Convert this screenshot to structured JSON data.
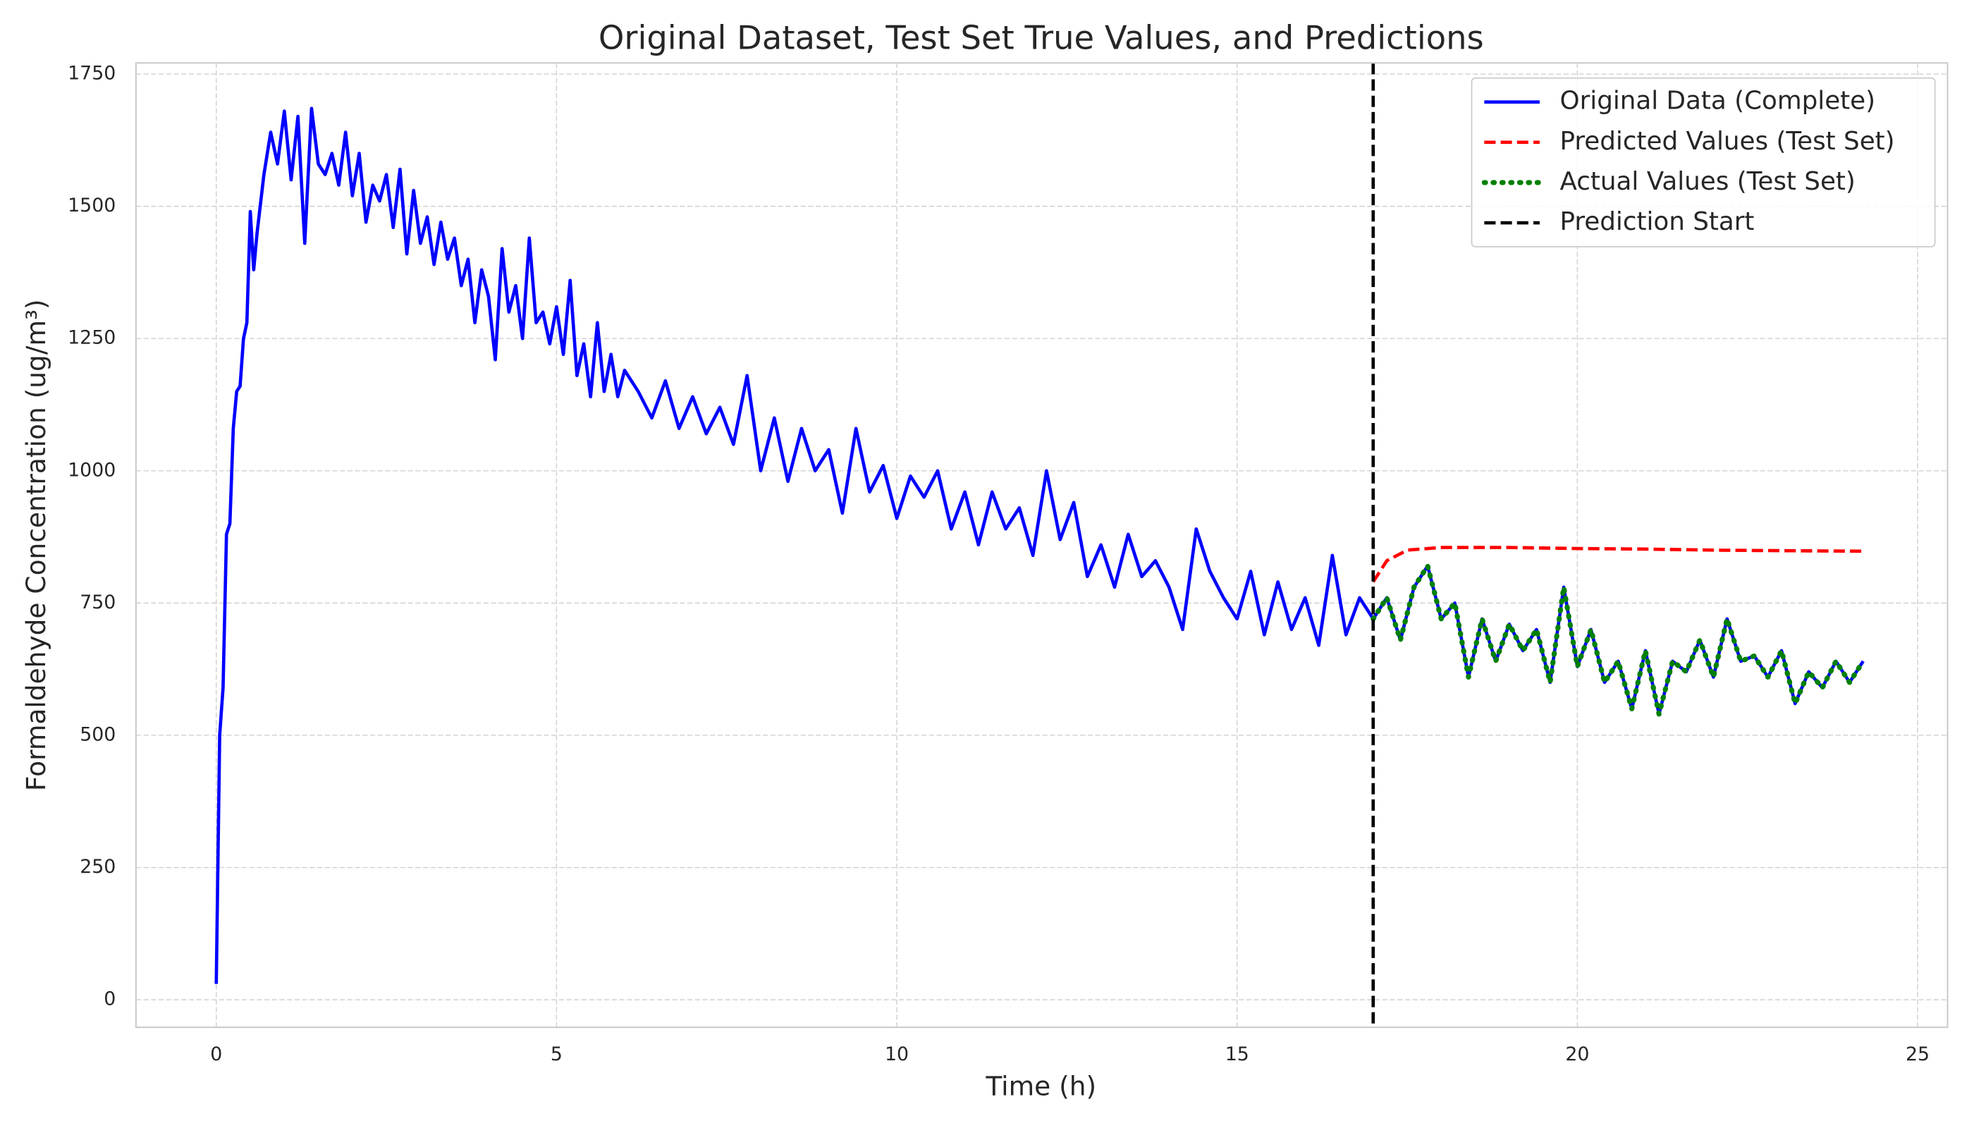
{
  "chart_data": {
    "type": "line",
    "title": "Original Dataset, Test Set True Values, and Predictions",
    "xlabel": "Time (h)",
    "ylabel": "Formaldehyde Concentration (ug/m³)",
    "xlim": [
      -1.18,
      25.44
    ],
    "ylim": [
      -52,
      1771
    ],
    "xticks": [
      0,
      5,
      10,
      15,
      20,
      25
    ],
    "yticks": [
      0,
      250,
      500,
      750,
      1000,
      1250,
      1500,
      1750
    ],
    "grid": true,
    "legend": "upper right",
    "series": [
      {
        "name": "Original Data (Complete)",
        "color": "#0000ff",
        "style": "solid",
        "x": [
          0,
          0.05,
          0.1,
          0.15,
          0.2,
          0.25,
          0.3,
          0.35,
          0.4,
          0.45,
          0.5,
          0.55,
          0.6,
          0.7,
          0.8,
          0.9,
          1.0,
          1.1,
          1.2,
          1.3,
          1.4,
          1.5,
          1.6,
          1.7,
          1.8,
          1.9,
          2.0,
          2.1,
          2.2,
          2.3,
          2.4,
          2.5,
          2.6,
          2.7,
          2.8,
          2.9,
          3.0,
          3.1,
          3.2,
          3.3,
          3.4,
          3.5,
          3.6,
          3.7,
          3.8,
          3.9,
          4.0,
          4.1,
          4.2,
          4.3,
          4.4,
          4.5,
          4.6,
          4.7,
          4.8,
          4.9,
          5.0,
          5.1,
          5.2,
          5.3,
          5.4,
          5.5,
          5.6,
          5.7,
          5.8,
          5.9,
          6.0,
          6.2,
          6.4,
          6.6,
          6.8,
          7.0,
          7.2,
          7.4,
          7.6,
          7.8,
          8.0,
          8.2,
          8.4,
          8.6,
          8.8,
          9.0,
          9.2,
          9.4,
          9.6,
          9.8,
          10.0,
          10.2,
          10.4,
          10.6,
          10.8,
          11.0,
          11.2,
          11.4,
          11.6,
          11.8,
          12.0,
          12.2,
          12.4,
          12.6,
          12.8,
          13.0,
          13.2,
          13.4,
          13.6,
          13.8,
          14.0,
          14.2,
          14.4,
          14.6,
          14.8,
          15.0,
          15.2,
          15.4,
          15.6,
          15.8,
          16.0,
          16.2,
          16.4,
          16.6,
          16.8,
          17.0,
          17.2,
          17.4,
          17.6,
          17.8,
          18.0,
          18.2,
          18.4,
          18.6,
          18.8,
          19.0,
          19.2,
          19.4,
          19.6,
          19.8,
          20.0,
          20.2,
          20.4,
          20.6,
          20.8,
          21.0,
          21.2,
          21.4,
          21.6,
          21.8,
          22.0,
          22.2,
          22.4,
          22.6,
          22.8,
          23.0,
          23.2,
          23.4,
          23.6,
          23.8,
          24.0,
          24.2
        ],
        "values": [
          30,
          500,
          590,
          880,
          900,
          1080,
          1150,
          1160,
          1250,
          1280,
          1490,
          1380,
          1450,
          1560,
          1640,
          1580,
          1680,
          1550,
          1670,
          1430,
          1685,
          1580,
          1560,
          1600,
          1540,
          1640,
          1520,
          1600,
          1470,
          1540,
          1510,
          1560,
          1460,
          1570,
          1410,
          1530,
          1430,
          1480,
          1390,
          1470,
          1400,
          1440,
          1350,
          1400,
          1280,
          1380,
          1330,
          1210,
          1420,
          1300,
          1350,
          1250,
          1440,
          1280,
          1300,
          1240,
          1310,
          1220,
          1360,
          1180,
          1240,
          1140,
          1280,
          1150,
          1220,
          1140,
          1190,
          1150,
          1100,
          1170,
          1080,
          1140,
          1070,
          1120,
          1050,
          1180,
          1000,
          1100,
          980,
          1080,
          1000,
          1040,
          920,
          1080,
          960,
          1010,
          910,
          990,
          950,
          1000,
          890,
          960,
          860,
          960,
          890,
          930,
          840,
          1000,
          870,
          940,
          800,
          860,
          780,
          880,
          800,
          830,
          780,
          700,
          890,
          810,
          760,
          720,
          810,
          690,
          790,
          700,
          760,
          670,
          840,
          690,
          760,
          720,
          760,
          680,
          780,
          820,
          720,
          750,
          610,
          720,
          640,
          710,
          660,
          700,
          600,
          780,
          630,
          700,
          600,
          640,
          550,
          660,
          540,
          640,
          620,
          680,
          610,
          720,
          640,
          650,
          610,
          660,
          560,
          620,
          590,
          640,
          600,
          640
        ]
      },
      {
        "name": "Predicted Values (Test Set)",
        "color": "#ff0000",
        "style": "dashed",
        "x": [
          17.0,
          17.2,
          17.5,
          18,
          19,
          20,
          21,
          22,
          23,
          24.2
        ],
        "values": [
          790,
          830,
          850,
          855,
          855,
          853,
          852,
          850,
          849,
          848
        ]
      },
      {
        "name": "Actual Values (Test Set)",
        "color": "#008000",
        "style": "dotted",
        "x": [
          17.0,
          17.2,
          17.4,
          17.6,
          17.8,
          18.0,
          18.2,
          18.4,
          18.6,
          18.8,
          19.0,
          19.2,
          19.4,
          19.6,
          19.8,
          20.0,
          20.2,
          20.4,
          20.6,
          20.8,
          21.0,
          21.2,
          21.4,
          21.6,
          21.8,
          22.0,
          22.2,
          22.4,
          22.6,
          22.8,
          23.0,
          23.2,
          23.4,
          23.6,
          23.8,
          24.0,
          24.2
        ],
        "values": [
          720,
          760,
          680,
          780,
          820,
          720,
          750,
          610,
          720,
          640,
          710,
          660,
          700,
          600,
          780,
          630,
          700,
          600,
          640,
          550,
          660,
          540,
          640,
          620,
          680,
          610,
          720,
          640,
          650,
          610,
          660,
          560,
          620,
          590,
          640,
          600,
          640
        ]
      }
    ],
    "vline": {
      "name": "Prediction Start",
      "x": 17,
      "color": "#000000",
      "style": "dashed"
    }
  }
}
